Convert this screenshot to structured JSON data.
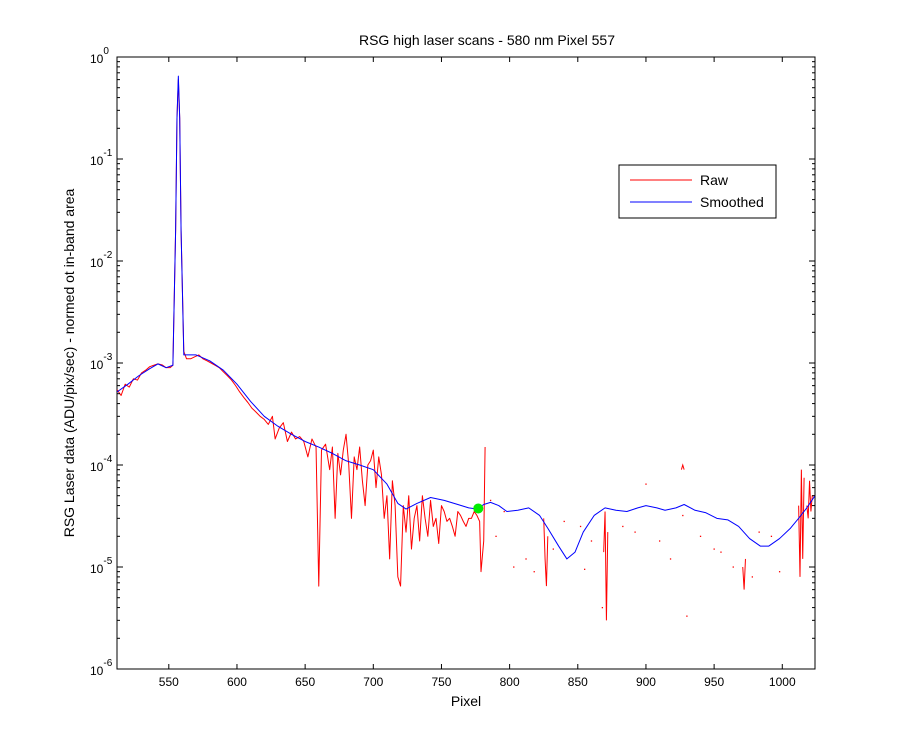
{
  "chart_data": {
    "type": "line",
    "title": "RSG high laser scans  - 580 nm    Pixel 557",
    "xlabel": "Pixel",
    "ylabel": "RSG Laser data (ADU/pix/sec) - normed ot in-band area",
    "xlim": [
      512,
      1024
    ],
    "ylim": [
      1e-06,
      1
    ],
    "yscale": "log",
    "xticks": [
      550,
      600,
      650,
      700,
      750,
      800,
      850,
      900,
      950,
      1000
    ],
    "yticks": [
      {
        "value": 1e-06,
        "base": "10",
        "exp": "-6"
      },
      {
        "value": 1e-05,
        "base": "10",
        "exp": "-5"
      },
      {
        "value": 0.0001,
        "base": "10",
        "exp": "-4"
      },
      {
        "value": 0.001,
        "base": "10",
        "exp": "-3"
      },
      {
        "value": 0.01,
        "base": "10",
        "exp": "-2"
      },
      {
        "value": 0.1,
        "base": "10",
        "exp": "-1"
      },
      {
        "value": 1,
        "base": "10",
        "exp": "0"
      }
    ],
    "grid": false,
    "legend_position": "top-right",
    "series": [
      {
        "name": "Raw",
        "color": "#ff0000",
        "points": [
          [
            512,
            0.00055
          ],
          [
            515,
            0.00048
          ],
          [
            518,
            0.00062
          ],
          [
            521,
            0.00058
          ],
          [
            524,
            0.0007
          ],
          [
            527,
            0.00068
          ],
          [
            530,
            0.0008
          ],
          [
            533,
            0.00085
          ],
          [
            536,
            0.00092
          ],
          [
            539,
            0.00095
          ],
          [
            542,
            0.00098
          ],
          [
            545,
            0.00096
          ],
          [
            548,
            0.0009
          ],
          [
            551,
            0.0009
          ],
          [
            553,
            0.00095
          ],
          [
            555,
            0.02
          ],
          [
            556,
            0.25
          ],
          [
            557,
            0.6
          ],
          [
            558,
            0.25
          ],
          [
            559,
            0.02
          ],
          [
            561,
            0.0013
          ],
          [
            563,
            0.0011
          ],
          [
            566,
            0.0011
          ],
          [
            569,
            0.00115
          ],
          [
            572,
            0.0012
          ],
          [
            575,
            0.0011
          ],
          [
            578,
            0.00105
          ],
          [
            581,
            0.001
          ],
          [
            584,
            0.00095
          ],
          [
            587,
            0.0009
          ],
          [
            590,
            0.00082
          ],
          [
            593,
            0.00075
          ],
          [
            596,
            0.00068
          ],
          [
            599,
            0.0006
          ],
          [
            602,
            0.00052
          ],
          [
            605,
            0.00046
          ],
          [
            608,
            0.00041
          ],
          [
            611,
            0.00036
          ],
          [
            614,
            0.00033
          ],
          [
            617,
            0.0003
          ],
          [
            620,
            0.00028
          ],
          [
            623,
            0.00025
          ],
          [
            626,
            0.0003
          ],
          [
            628,
            0.00018
          ],
          [
            631,
            0.00023
          ],
          [
            634,
            0.00026
          ],
          [
            637,
            0.00017
          ],
          [
            640,
            0.00021
          ],
          [
            643,
            0.00018
          ],
          [
            646,
            0.00019
          ],
          [
            649,
            0.00017
          ],
          [
            652,
            0.00012
          ],
          [
            655,
            0.00018
          ],
          [
            658,
            0.00015
          ],
          [
            660,
            6.5e-06
          ],
          [
            662,
            0.00014
          ],
          [
            665,
            0.00016
          ],
          [
            668,
            9e-05
          ],
          [
            670,
            0.00015
          ],
          [
            672,
            3e-05
          ],
          [
            674,
            0.00013
          ],
          [
            676,
            8e-05
          ],
          [
            678,
            0.00014
          ],
          [
            680,
            0.0002
          ],
          [
            682,
            0.0001
          ],
          [
            684,
            3e-05
          ],
          [
            686,
            0.00012
          ],
          [
            688,
            9e-05
          ],
          [
            690,
            0.00015
          ],
          [
            692,
            7e-05
          ],
          [
            694,
            4e-05
          ],
          [
            696,
            0.0001
          ],
          [
            698,
            0.00011
          ],
          [
            700,
            0.00014
          ],
          [
            702,
            6e-05
          ],
          [
            704,
            0.00012
          ],
          [
            706,
            8e-05
          ],
          [
            708,
            3e-05
          ],
          [
            710,
            5e-05
          ],
          [
            712,
            1.2e-05
          ],
          [
            714,
            7e-05
          ],
          [
            716,
            4e-05
          ],
          [
            718,
            8e-06
          ],
          [
            720,
            6.5e-06
          ],
          [
            722,
            4e-05
          ],
          [
            724,
            2.2e-05
          ],
          [
            726,
            5e-05
          ],
          [
            728,
            1.5e-05
          ],
          [
            730,
            3e-05
          ],
          [
            732,
            4e-05
          ],
          [
            734,
            1.8e-05
          ],
          [
            736,
            5e-05
          ],
          [
            738,
            3e-05
          ],
          [
            740,
            2e-05
          ],
          [
            742,
            4.5e-05
          ],
          [
            744,
            2.5e-05
          ],
          [
            746,
            3e-05
          ],
          [
            748,
            1.7e-05
          ],
          [
            750,
            4e-05
          ],
          [
            752,
            3.5e-05
          ],
          [
            754,
            2.8e-05
          ],
          [
            756,
            3e-05
          ],
          [
            758,
            2.5e-05
          ],
          [
            760,
            2e-05
          ],
          [
            762,
            3.5e-05
          ],
          [
            764,
            3.2e-05
          ],
          [
            766,
            2.8e-05
          ],
          [
            768,
            2.5e-05
          ],
          [
            770,
            3e-05
          ],
          [
            772,
            3e-05
          ],
          [
            774,
            3.5e-05
          ],
          [
            776,
            3.2e-05
          ],
          [
            778,
            2.8e-05
          ],
          [
            779,
            9e-06
          ],
          [
            781,
            1.8e-05
          ],
          [
            782,
            0.00015
          ]
        ],
        "segments": [
          [
            [
              825,
              3e-05
            ],
            [
              826,
              1.2e-05
            ],
            [
              827,
              6.5e-06
            ],
            [
              828,
              2e-05
            ]
          ],
          [
            [
              869,
              1.4e-05
            ],
            [
              870,
              3.5e-05
            ],
            [
              871,
              3e-06
            ],
            [
              872,
              2.2e-05
            ]
          ],
          [
            [
              926,
              9e-05
            ],
            [
              927,
              0.0001
            ],
            [
              928,
              9e-05
            ]
          ],
          [
            [
              971,
              1e-05
            ],
            [
              972,
              6e-06
            ],
            [
              973,
              1.2e-05
            ]
          ],
          [
            [
              1012,
              4e-05
            ],
            [
              1013,
              8e-06
            ],
            [
              1014,
              9e-05
            ],
            [
              1015,
              1.2e-05
            ],
            [
              1016,
              7.5e-05
            ]
          ],
          [
            [
              1018,
              4e-05
            ],
            [
              1019,
              3e-05
            ],
            [
              1020,
              7e-05
            ],
            [
              1021,
              3.5e-05
            ],
            [
              1022,
              5e-05
            ],
            [
              1024,
              5e-05
            ]
          ]
        ],
        "dots": [
          [
            786,
            4.5e-05
          ],
          [
            790,
            2e-05
          ],
          [
            796,
            3.5e-05
          ],
          [
            803,
            1e-05
          ],
          [
            812,
            1.2e-05
          ],
          [
            818,
            9e-06
          ],
          [
            832,
            1.5e-05
          ],
          [
            840,
            2.8e-05
          ],
          [
            852,
            2.5e-05
          ],
          [
            855,
            9.5e-06
          ],
          [
            860,
            1.8e-05
          ],
          [
            868,
            4e-06
          ],
          [
            883,
            2.5e-05
          ],
          [
            892,
            2.2e-05
          ],
          [
            900,
            6.5e-05
          ],
          [
            910,
            1.8e-05
          ],
          [
            918,
            1.2e-05
          ],
          [
            927,
            3.2e-05
          ],
          [
            930,
            3.3e-06
          ],
          [
            940,
            2e-05
          ],
          [
            950,
            1.5e-05
          ],
          [
            955,
            1.4e-05
          ],
          [
            964,
            1e-05
          ],
          [
            978,
            8e-06
          ],
          [
            983,
            2.2e-05
          ],
          [
            992,
            2e-05
          ],
          [
            998,
            9e-06
          ]
        ]
      },
      {
        "name": "Smoothed",
        "color": "#0000ff",
        "points": [
          [
            512,
            0.00052
          ],
          [
            520,
            0.00062
          ],
          [
            528,
            0.00075
          ],
          [
            536,
            0.00088
          ],
          [
            542,
            0.00098
          ],
          [
            548,
            0.0009
          ],
          [
            553,
            0.00095
          ],
          [
            555,
            0.02
          ],
          [
            556,
            0.25
          ],
          [
            557,
            0.65
          ],
          [
            558,
            0.25
          ],
          [
            559,
            0.02
          ],
          [
            561,
            0.0012
          ],
          [
            570,
            0.0012
          ],
          [
            580,
            0.00105
          ],
          [
            590,
            0.00085
          ],
          [
            600,
            0.00062
          ],
          [
            610,
            0.00042
          ],
          [
            620,
            0.0003
          ],
          [
            630,
            0.00024
          ],
          [
            640,
            0.0002
          ],
          [
            650,
            0.00017
          ],
          [
            660,
            0.00015
          ],
          [
            670,
            0.00013
          ],
          [
            680,
            0.00011
          ],
          [
            690,
            0.0001
          ],
          [
            700,
            9e-05
          ],
          [
            710,
            6.5e-05
          ],
          [
            718,
            4.2e-05
          ],
          [
            724,
            3.7e-05
          ],
          [
            732,
            4.2e-05
          ],
          [
            742,
            4.8e-05
          ],
          [
            752,
            4.5e-05
          ],
          [
            762,
            4.1e-05
          ],
          [
            770,
            3.8e-05
          ],
          [
            776,
            3.7e-05
          ],
          [
            781,
            4.1e-05
          ],
          [
            786,
            4.3e-05
          ],
          [
            792,
            4e-05
          ],
          [
            798,
            3.5e-05
          ],
          [
            806,
            3.6e-05
          ],
          [
            814,
            3.8e-05
          ],
          [
            822,
            3.2e-05
          ],
          [
            828,
            2.4e-05
          ],
          [
            836,
            1.6e-05
          ],
          [
            842,
            1.2e-05
          ],
          [
            848,
            1.4e-05
          ],
          [
            854,
            2.2e-05
          ],
          [
            862,
            3.2e-05
          ],
          [
            870,
            3.8e-05
          ],
          [
            878,
            3.6e-05
          ],
          [
            886,
            3.5e-05
          ],
          [
            894,
            3.8e-05
          ],
          [
            900,
            4e-05
          ],
          [
            908,
            3.8e-05
          ],
          [
            914,
            3.6e-05
          ],
          [
            922,
            3.8e-05
          ],
          [
            928,
            4.1e-05
          ],
          [
            936,
            3.6e-05
          ],
          [
            944,
            3.4e-05
          ],
          [
            952,
            3e-05
          ],
          [
            960,
            2.9e-05
          ],
          [
            968,
            2.5e-05
          ],
          [
            976,
            1.9e-05
          ],
          [
            984,
            1.6e-05
          ],
          [
            990,
            1.6e-05
          ],
          [
            998,
            1.9e-05
          ],
          [
            1006,
            2.4e-05
          ],
          [
            1012,
            3e-05
          ],
          [
            1018,
            3.8e-05
          ],
          [
            1024,
            5e-05
          ]
        ]
      }
    ],
    "highlight_point": {
      "x": 777,
      "y": 3.75e-05,
      "color": "#00ee00"
    }
  }
}
